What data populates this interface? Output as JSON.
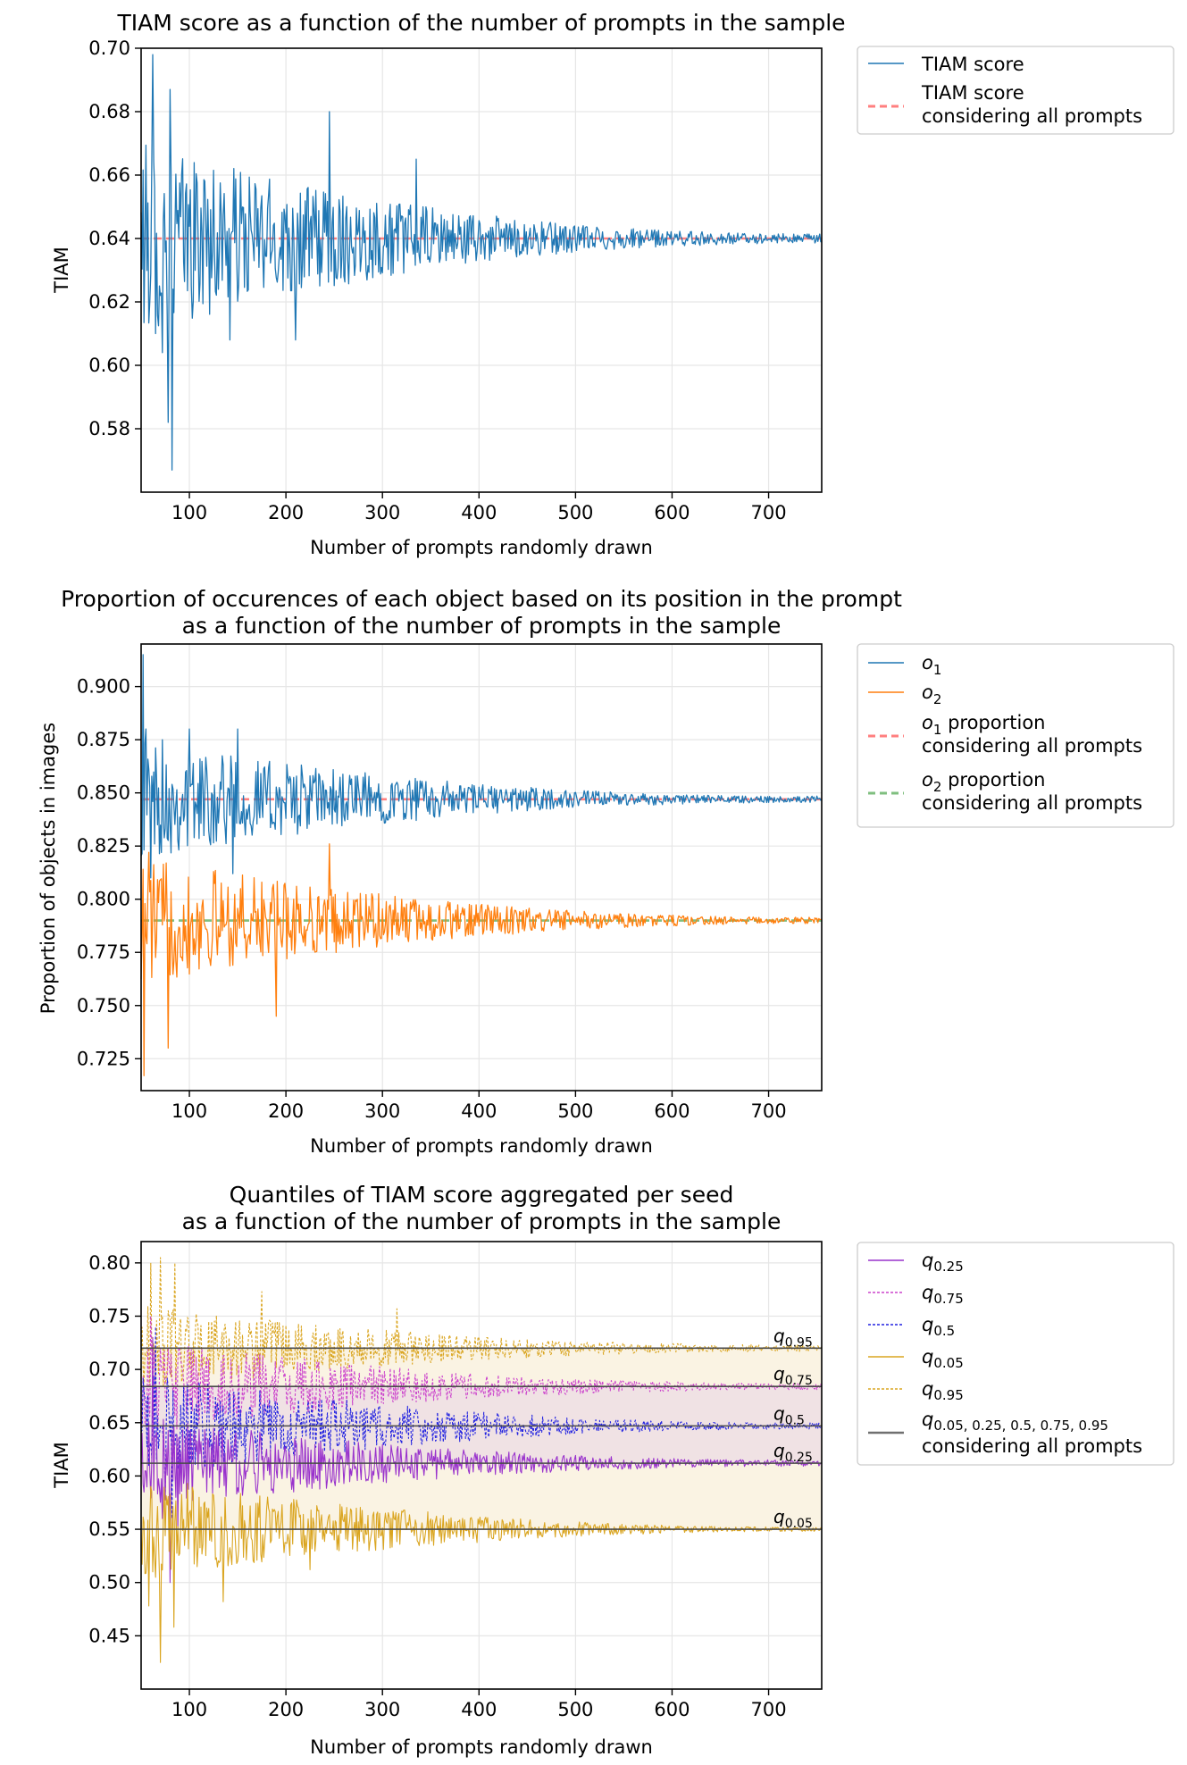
{
  "chart_data": [
    {
      "type": "line",
      "title": "TIAM score as a function of the number of prompts in the sample",
      "xlabel": "Number of prompts randomly drawn",
      "ylabel": "TIAM",
      "xlim": [
        50,
        755
      ],
      "ylim": [
        0.56,
        0.7
      ],
      "xticks": [
        "100",
        "200",
        "300",
        "400",
        "500",
        "600",
        "700"
      ],
      "yticks": [
        "0.58",
        "0.60",
        "0.62",
        "0.64",
        "0.66",
        "0.68",
        "0.70"
      ],
      "grid": true,
      "legend_position": "outside-right",
      "legend": [
        {
          "label": "TIAM score",
          "color": "#1f77b4",
          "style": "solid"
        },
        {
          "label": "TIAM score\nconsidering all prompts",
          "color": "#ff7f7f",
          "style": "dashed"
        }
      ],
      "reference_lines": [
        {
          "name": "TIAM score considering all prompts",
          "value": 0.64,
          "color": "#ff7f7f"
        }
      ],
      "series": [
        {
          "name": "TIAM score",
          "color": "#1f77b4",
          "x_start": 50,
          "x_end": 755,
          "start_amp": 0.03,
          "end_amp": 0.0015,
          "center": 0.64,
          "spikes": [
            [
              62,
              0.698
            ],
            [
              65,
              0.61
            ],
            [
              72,
              0.604
            ],
            [
              78,
              0.582
            ],
            [
              80,
              0.687
            ],
            [
              82,
              0.567
            ],
            [
              142,
              0.608
            ],
            [
              210,
              0.608
            ],
            [
              245,
              0.68
            ],
            [
              335,
              0.665
            ]
          ]
        }
      ]
    },
    {
      "type": "line",
      "title": "Proportion of occurences of each object based on its position in the prompt\nas a function of the number of prompts in the sample",
      "xlabel": "Number of prompts randomly drawn",
      "ylabel": "Proportion of objects in images",
      "xlim": [
        50,
        755
      ],
      "ylim": [
        0.71,
        0.92
      ],
      "xticks": [
        "100",
        "200",
        "300",
        "400",
        "500",
        "600",
        "700"
      ],
      "yticks": [
        "0.725",
        "0.750",
        "0.775",
        "0.800",
        "0.825",
        "0.850",
        "0.875",
        "0.900"
      ],
      "grid": true,
      "legend_position": "outside-right",
      "legend": [
        {
          "label": "o1",
          "color": "#1f77b4",
          "style": "solid"
        },
        {
          "label": "o2",
          "color": "#ff7f0e",
          "style": "solid"
        },
        {
          "label": "o1 proportion\nconsidering all prompts",
          "color": "#ff7f7f",
          "style": "dashed"
        },
        {
          "label": "o2 proportion\nconsidering all prompts",
          "color": "#7fbf7f",
          "style": "dashed"
        }
      ],
      "reference_lines": [
        {
          "name": "o1 proportion considering all prompts",
          "value": 0.847,
          "color": "#ff7f7f"
        },
        {
          "name": "o2 proportion considering all prompts",
          "value": 0.79,
          "color": "#7fbf7f"
        }
      ],
      "series": [
        {
          "name": "o1",
          "color": "#1f77b4",
          "x_start": 50,
          "x_end": 755,
          "start_amp": 0.028,
          "end_amp": 0.0015,
          "center": 0.847,
          "spikes": [
            [
              52,
              0.915
            ],
            [
              55,
              0.88
            ],
            [
              60,
              0.81
            ],
            [
              72,
              0.875
            ],
            [
              100,
              0.88
            ],
            [
              150,
              0.88
            ],
            [
              145,
              0.812
            ]
          ]
        },
        {
          "name": "o2",
          "color": "#ff7f0e",
          "x_start": 50,
          "x_end": 755,
          "start_amp": 0.03,
          "end_amp": 0.0015,
          "center": 0.79,
          "spikes": [
            [
              53,
              0.717
            ],
            [
              58,
              0.822
            ],
            [
              78,
              0.73
            ],
            [
              190,
              0.745
            ],
            [
              245,
              0.826
            ],
            [
              250,
              0.78
            ]
          ]
        }
      ]
    },
    {
      "type": "line",
      "title": "Quantiles of TIAM score aggregated per seed\nas a function of the number of prompts in the sample",
      "xlabel": "Number of prompts randomly drawn",
      "ylabel": "TIAM",
      "xlim": [
        50,
        755
      ],
      "ylim": [
        0.4,
        0.82
      ],
      "xticks": [
        "100",
        "200",
        "300",
        "400",
        "500",
        "600",
        "700"
      ],
      "yticks": [
        "0.45",
        "0.50",
        "0.55",
        "0.60",
        "0.65",
        "0.70",
        "0.75",
        "0.80"
      ],
      "grid": true,
      "legend_position": "outside-right",
      "legend": [
        {
          "label": "q0.25",
          "color": "#9932cc",
          "style": "solid"
        },
        {
          "label": "q0.75",
          "color": "#cc44cc",
          "style": "dotted"
        },
        {
          "label": "q0.5",
          "color": "#2020e0",
          "style": "dotted"
        },
        {
          "label": "q0.05",
          "color": "#daa520",
          "style": "solid"
        },
        {
          "label": "q0.95",
          "color": "#daa520",
          "style": "dotted"
        },
        {
          "label": "q0.05, 0.25, 0.5, 0.75, 0.95\nconsidering all prompts",
          "color": "#707070",
          "style": "solid"
        }
      ],
      "reference_lines": [
        {
          "name": "q0.95",
          "value": 0.72
        },
        {
          "name": "q0.75",
          "value": 0.684
        },
        {
          "name": "q0.5",
          "value": 0.647
        },
        {
          "name": "q0.25",
          "value": 0.612
        },
        {
          "name": "q0.05",
          "value": 0.55
        }
      ],
      "annotations": [
        "q0.95",
        "q0.75",
        "q0.5",
        "q0.25",
        "q0.05"
      ],
      "series": [
        {
          "name": "q0.95",
          "color": "#daa520",
          "dash": "3,2",
          "x_start": 50,
          "x_end": 755,
          "start_amp": 0.04,
          "end_amp": 0.003,
          "center": 0.72,
          "spikes": [
            [
              60,
              0.8
            ],
            [
              70,
              0.805
            ],
            [
              85,
              0.8
            ],
            [
              175,
              0.773
            ],
            [
              315,
              0.757
            ]
          ]
        },
        {
          "name": "q0.75",
          "color": "#cc44cc",
          "dash": "3,2",
          "x_start": 50,
          "x_end": 755,
          "start_amp": 0.045,
          "end_amp": 0.003,
          "center": 0.684,
          "spikes": [
            [
              60,
              0.75
            ],
            [
              78,
              0.72
            ]
          ]
        },
        {
          "name": "q0.5",
          "color": "#2020e0",
          "dash": "3,2",
          "x_start": 50,
          "x_end": 755,
          "start_amp": 0.05,
          "end_amp": 0.003,
          "center": 0.647,
          "spikes": [
            [
              65,
              0.74
            ],
            [
              75,
              0.58
            ],
            [
              82,
              0.56
            ]
          ]
        },
        {
          "name": "q0.25",
          "color": "#9932cc",
          "dash": "",
          "x_start": 50,
          "x_end": 755,
          "start_amp": 0.045,
          "end_amp": 0.003,
          "center": 0.612,
          "spikes": [
            [
              62,
              0.73
            ],
            [
              72,
              0.56
            ],
            [
              80,
              0.5
            ],
            [
              88,
              0.55
            ]
          ]
        },
        {
          "name": "q0.05",
          "color": "#daa520",
          "dash": "",
          "x_start": 50,
          "x_end": 755,
          "start_amp": 0.05,
          "end_amp": 0.002,
          "center": 0.55,
          "spikes": [
            [
              58,
              0.478
            ],
            [
              62,
              0.51
            ],
            [
              70,
              0.425
            ],
            [
              84,
              0.458
            ],
            [
              135,
              0.482
            ],
            [
              225,
              0.512
            ]
          ]
        }
      ]
    }
  ]
}
